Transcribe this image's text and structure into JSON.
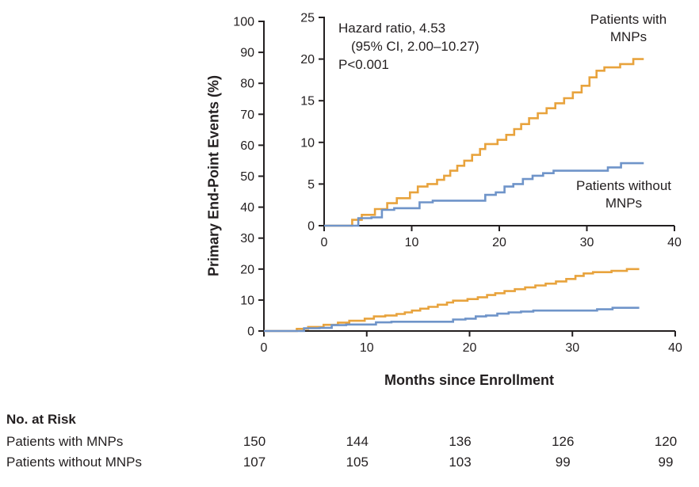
{
  "chart_data": {
    "type": "line",
    "subtype": "kaplan-meier-step-with-inset",
    "xlabel": "Months since Enrollment",
    "ylabel": "Primary End-Point Events (%)",
    "annotation": {
      "line1": "Hazard ratio, 4.53",
      "line2": "(95% CI, 2.00–10.27)",
      "line3": "P<0.001"
    },
    "axis_color": "#231f20",
    "text_color": "#231f20",
    "grid": false,
    "main_axes": {
      "xlim": [
        0,
        40
      ],
      "ylim": [
        0,
        100
      ],
      "xticks": [
        0,
        10,
        20,
        30,
        40
      ],
      "yticks": [
        0,
        10,
        20,
        30,
        40,
        50,
        60,
        70,
        80,
        90,
        100
      ]
    },
    "inset_axes": {
      "xlim": [
        0,
        40
      ],
      "ylim": [
        0,
        25
      ],
      "xticks": [
        0,
        10,
        20,
        30,
        40
      ],
      "yticks": [
        0,
        5,
        10,
        15,
        20,
        25
      ]
    },
    "series": [
      {
        "name": "Patients with MNPs",
        "label": "Patients with MNPs",
        "color": "#e8a33d",
        "steps": [
          [
            0,
            0
          ],
          [
            3.2,
            0.7
          ],
          [
            4.3,
            1.3
          ],
          [
            5.8,
            2.0
          ],
          [
            7.2,
            2.7
          ],
          [
            8.3,
            3.3
          ],
          [
            9.8,
            4.0
          ],
          [
            10.7,
            4.7
          ],
          [
            11.8,
            5.0
          ],
          [
            12.9,
            5.5
          ],
          [
            13.7,
            6.0
          ],
          [
            14.4,
            6.6
          ],
          [
            15.2,
            7.2
          ],
          [
            16.0,
            7.8
          ],
          [
            16.9,
            8.5
          ],
          [
            17.8,
            9.2
          ],
          [
            18.4,
            9.8
          ],
          [
            19.8,
            10.3
          ],
          [
            20.8,
            10.9
          ],
          [
            21.7,
            11.6
          ],
          [
            22.5,
            12.2
          ],
          [
            23.4,
            12.9
          ],
          [
            24.4,
            13.5
          ],
          [
            25.4,
            14.1
          ],
          [
            26.4,
            14.7
          ],
          [
            27.4,
            15.3
          ],
          [
            28.4,
            16.0
          ],
          [
            29.4,
            16.8
          ],
          [
            30.3,
            17.8
          ],
          [
            31.1,
            18.6
          ],
          [
            32.0,
            19.0
          ],
          [
            33.8,
            19.4
          ],
          [
            35.3,
            20.0
          ],
          [
            36.5,
            20.0
          ]
        ]
      },
      {
        "name": "Patients without MNPs",
        "label": "Patients without MNPs",
        "color": "#6f94c9",
        "steps": [
          [
            0,
            0
          ],
          [
            3.9,
            0.9
          ],
          [
            5.4,
            1.0
          ],
          [
            6.6,
            1.9
          ],
          [
            8.0,
            2.1
          ],
          [
            10.9,
            2.8
          ],
          [
            12.4,
            3.0
          ],
          [
            18.4,
            3.7
          ],
          [
            19.6,
            4.0
          ],
          [
            20.6,
            4.7
          ],
          [
            21.6,
            5.0
          ],
          [
            22.7,
            5.6
          ],
          [
            23.8,
            6.0
          ],
          [
            25.0,
            6.3
          ],
          [
            26.2,
            6.6
          ],
          [
            32.4,
            7.0
          ],
          [
            33.9,
            7.5
          ],
          [
            36.5,
            7.5
          ]
        ]
      }
    ]
  },
  "risk_table": {
    "title": "No. at Risk",
    "columns_months": [
      0,
      10,
      20,
      30,
      40
    ],
    "rows": [
      {
        "label": "Patients with MNPs",
        "values": [
          "150",
          "144",
          "136",
          "126",
          "120"
        ]
      },
      {
        "label": "Patients without MNPs",
        "values": [
          "107",
          "105",
          "103",
          "99",
          "99"
        ]
      }
    ]
  }
}
